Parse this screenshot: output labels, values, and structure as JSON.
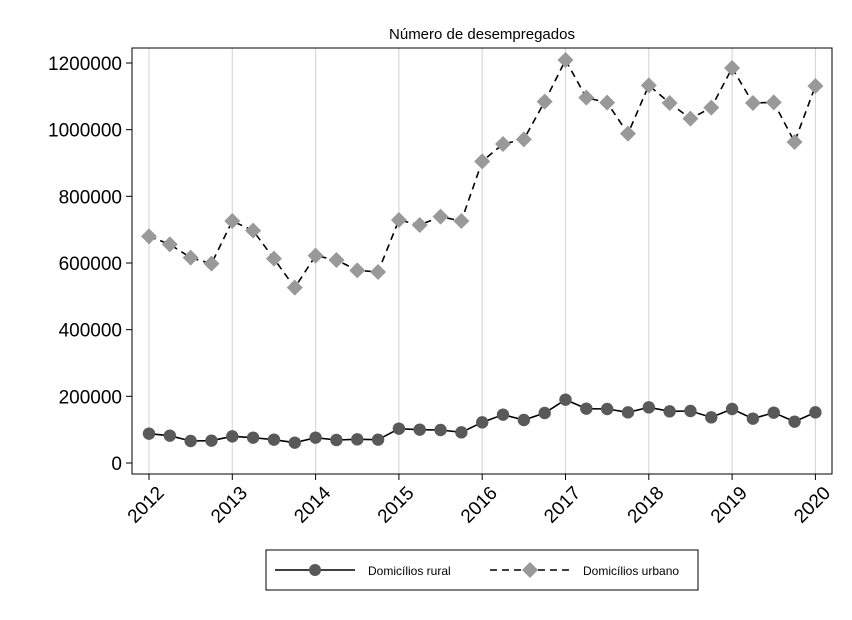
{
  "chart_data": {
    "type": "line",
    "title": "Número de desempregados",
    "xlabel": "",
    "ylabel": "",
    "x_tick_labels": [
      "2012",
      "2013",
      "2014",
      "2015",
      "2016",
      "2017",
      "2018",
      "2019",
      "2020"
    ],
    "y_tick_labels": [
      "0",
      "200000",
      "400000",
      "600000",
      "800000",
      "1000000",
      "1200000"
    ],
    "ylim": [
      0,
      1200000
    ],
    "grid": "vertical lines at years",
    "legend_position": "bottom",
    "x": [
      2012.0,
      2012.25,
      2012.5,
      2012.75,
      2013.0,
      2013.25,
      2013.5,
      2013.75,
      2014.0,
      2014.25,
      2014.5,
      2014.75,
      2015.0,
      2015.25,
      2015.5,
      2015.75,
      2016.0,
      2016.25,
      2016.5,
      2016.75,
      2017.0,
      2017.25,
      2017.5,
      2017.75,
      2018.0,
      2018.25,
      2018.5,
      2018.75,
      2019.0,
      2019.25,
      2019.5,
      2019.75,
      2020.0
    ],
    "series": [
      {
        "name": "Domicílios rural",
        "color": "#595959",
        "marker": "circle",
        "line": "solid",
        "values": [
          88000,
          82000,
          66000,
          67000,
          80000,
          76000,
          70000,
          61000,
          76000,
          69000,
          71000,
          70000,
          103000,
          100000,
          99000,
          92000,
          122000,
          145000,
          129000,
          150000,
          190000,
          163000,
          162000,
          152000,
          167000,
          155000,
          156000,
          137000,
          162000,
          133000,
          151000,
          124000,
          152000
        ]
      },
      {
        "name": "Domicílios urbano",
        "color": "#999999",
        "marker": "diamond",
        "line": "dashed",
        "values": [
          680000,
          656000,
          616000,
          598000,
          726000,
          697000,
          613000,
          526000,
          622000,
          609000,
          578000,
          573000,
          729000,
          714000,
          739000,
          726000,
          905000,
          957000,
          971000,
          1084000,
          1209000,
          1096000,
          1081000,
          988000,
          1133000,
          1080000,
          1033000,
          1066000,
          1185000,
          1080000,
          1082000,
          963000,
          1131000
        ]
      }
    ]
  }
}
